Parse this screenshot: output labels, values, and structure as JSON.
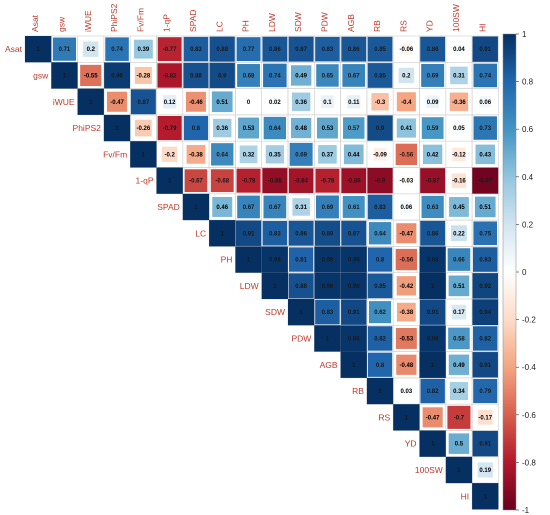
{
  "chart_data": {
    "type": "heatmap",
    "variables": [
      "Asat",
      "gsw",
      "iWUE",
      "PhiPS2",
      "Fv/Fm",
      "1-qP",
      "SPAD",
      "LC",
      "PH",
      "LDW",
      "SDW",
      "PDW",
      "AGB",
      "RB",
      "RS",
      "YD",
      "100SW",
      "HI"
    ],
    "matrix": [
      [
        1,
        0.71,
        0.2,
        0.74,
        0.39,
        -0.77,
        0.83,
        0.88,
        0.77,
        0.86,
        0.87,
        0.83,
        0.86,
        0.85,
        -0.06,
        0.86,
        0.04,
        0.91
      ],
      [
        null,
        1,
        -0.55,
        0.96,
        -0.28,
        -0.82,
        0.88,
        0.9,
        0.68,
        0.74,
        0.49,
        0.65,
        0.67,
        0.85,
        0.2,
        0.69,
        0.31,
        0.74
      ],
      [
        null,
        null,
        1,
        -0.47,
        0.87,
        0.12,
        -0.46,
        0.51,
        0,
        0.02,
        0.36,
        0.1,
        0.11,
        -0.3,
        -0.4,
        0.09,
        -0.36,
        0.06
      ],
      [
        null,
        null,
        null,
        1,
        -0.26,
        -0.79,
        0.8,
        0.36,
        0.53,
        0.64,
        0.48,
        0.53,
        0.57,
        0.9,
        0.41,
        0.59,
        0.05,
        0.73
      ],
      [
        null,
        null,
        null,
        null,
        1,
        -0.2,
        -0.38,
        0.64,
        0.32,
        0.35,
        0.69,
        0.37,
        0.44,
        -0.09,
        -0.56,
        0.42,
        -0.12,
        0.43
      ],
      [
        null,
        null,
        null,
        null,
        null,
        1,
        -0.67,
        -0.68,
        -0.78,
        -0.88,
        -0.84,
        -0.78,
        -0.86,
        -0.9,
        -0.03,
        -0.87,
        -0.16,
        -0.97
      ],
      [
        null,
        null,
        null,
        null,
        null,
        null,
        1,
        0.46,
        0.67,
        0.67,
        0.31,
        0.69,
        0.61,
        0.83,
        0.06,
        0.63,
        0.45,
        0.51
      ],
      [
        null,
        null,
        null,
        null,
        null,
        null,
        null,
        1,
        0.91,
        0.83,
        0.86,
        0.89,
        0.87,
        0.64,
        -0.47,
        0.86,
        0.22,
        0.75
      ],
      [
        null,
        null,
        null,
        null,
        null,
        null,
        null,
        null,
        1,
        0.98,
        0.81,
        0.98,
        0.98,
        0.8,
        -0.56,
        0.98,
        0.66,
        0.83
      ],
      [
        null,
        null,
        null,
        null,
        null,
        null,
        null,
        null,
        null,
        1,
        0.88,
        0.98,
        0.98,
        0.85,
        -0.42,
        1,
        0.51,
        0.92
      ],
      [
        null,
        null,
        null,
        null,
        null,
        null,
        null,
        null,
        null,
        null,
        1,
        0.83,
        0.91,
        0.62,
        -0.38,
        0.91,
        0.17,
        0.94
      ],
      [
        null,
        null,
        null,
        null,
        null,
        null,
        null,
        null,
        null,
        null,
        null,
        1,
        0.98,
        0.82,
        -0.53,
        0.98,
        0.58,
        0.82
      ],
      [
        null,
        null,
        null,
        null,
        null,
        null,
        null,
        null,
        null,
        null,
        null,
        null,
        1,
        0.8,
        -0.48,
        1,
        0.49,
        0.91
      ],
      [
        null,
        null,
        null,
        null,
        null,
        null,
        null,
        null,
        null,
        null,
        null,
        null,
        null,
        1,
        0.03,
        0.82,
        0.34,
        0.79
      ],
      [
        null,
        null,
        null,
        null,
        null,
        null,
        null,
        null,
        null,
        null,
        null,
        null,
        null,
        null,
        1,
        -0.47,
        -0.7,
        -0.17
      ],
      [
        null,
        null,
        null,
        null,
        null,
        null,
        null,
        null,
        null,
        null,
        null,
        null,
        null,
        null,
        null,
        1,
        0.5,
        0.91
      ],
      [
        null,
        null,
        null,
        null,
        null,
        null,
        null,
        null,
        null,
        null,
        null,
        null,
        null,
        null,
        null,
        null,
        1,
        0.19
      ],
      [
        null,
        null,
        null,
        null,
        null,
        null,
        null,
        null,
        null,
        null,
        null,
        null,
        null,
        null,
        null,
        null,
        null,
        1
      ]
    ],
    "colorbar": {
      "range": [
        -1,
        1
      ],
      "ticks": [
        "1",
        "0.8",
        "0.6",
        "0.4",
        "0.2",
        "0",
        "-0.2",
        "-0.4",
        "-0.6",
        "-0.8",
        "-1"
      ]
    },
    "colors": {
      "negative": "#67001f",
      "neutral": "#ffffff",
      "positive": "#053061",
      "label": "#c0392b"
    },
    "grid": true,
    "shape": "upper-triangle"
  }
}
